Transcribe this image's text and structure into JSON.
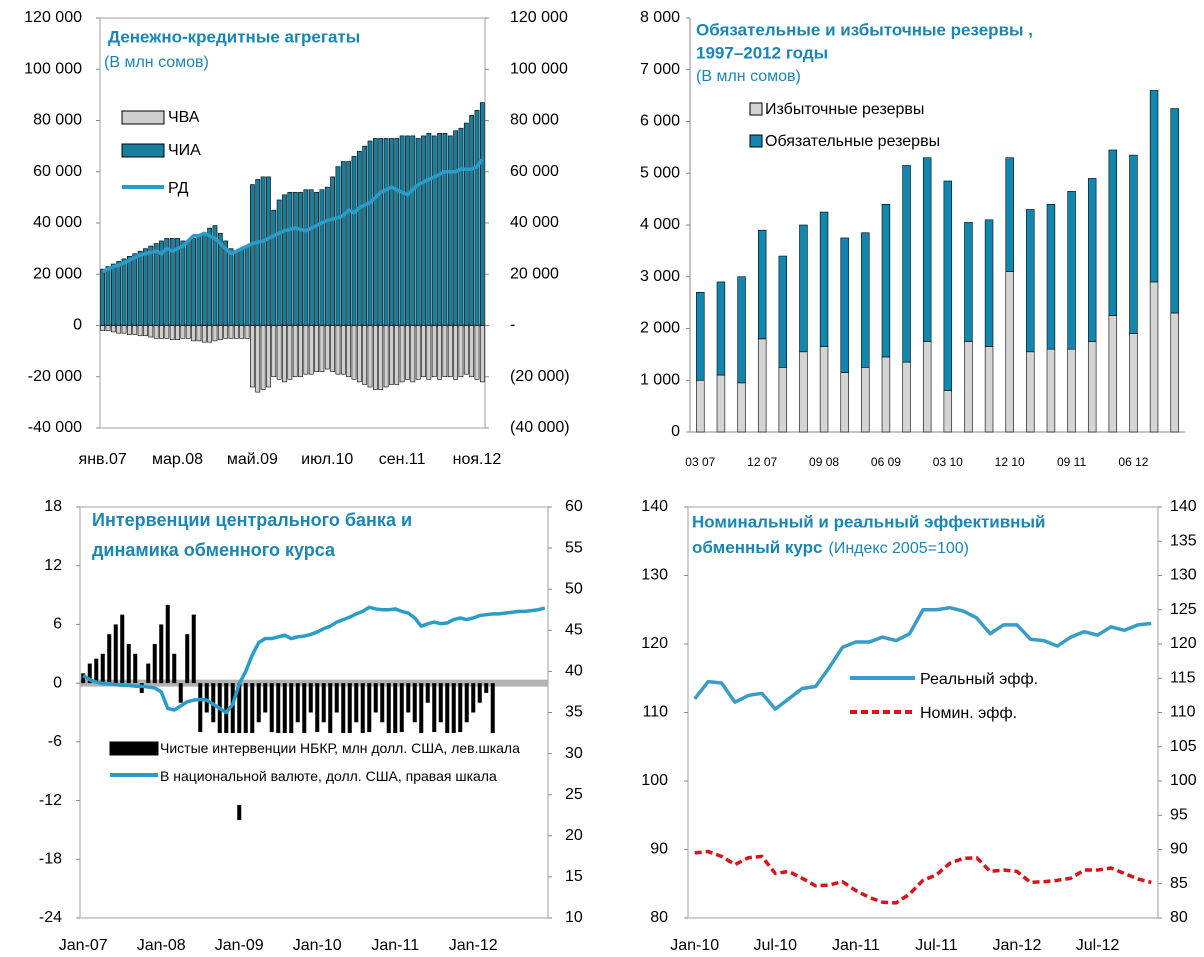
{
  "chart_data": [
    {
      "type": "combo",
      "title": "Денежно-кредитные агрегаты",
      "subtitle": "(В млн сомов)",
      "categories": [
        "янв.07",
        null,
        null,
        null,
        null,
        null,
        null,
        null,
        null,
        null,
        null,
        null,
        null,
        null,
        "мар.08",
        null,
        null,
        null,
        null,
        null,
        null,
        null,
        null,
        null,
        null,
        null,
        null,
        null,
        "май.09",
        null,
        null,
        null,
        null,
        null,
        null,
        null,
        null,
        null,
        null,
        null,
        null,
        null,
        "июл.10",
        null,
        null,
        null,
        null,
        null,
        null,
        null,
        null,
        null,
        null,
        null,
        null,
        null,
        "сен.11",
        null,
        null,
        null,
        null,
        null,
        null,
        null,
        null,
        null,
        null,
        null,
        null,
        null,
        "ноя.12",
        null
      ],
      "series": [
        {
          "name": "ЧВА",
          "type": "bar",
          "color": "#cfcfcf",
          "values": [
            -2000,
            -2000,
            -2500,
            -3000,
            -3000,
            -3500,
            -3500,
            -4000,
            -4000,
            -4500,
            -5000,
            -5000,
            -5000,
            -5500,
            -5500,
            -5000,
            -5000,
            -6000,
            -6000,
            -6500,
            -6500,
            -6000,
            -5500,
            -5000,
            -5000,
            -5000,
            -5000,
            -5000,
            -24000,
            -26000,
            -25000,
            -24000,
            -20000,
            -21000,
            -22000,
            -21000,
            -20000,
            -20000,
            -19000,
            -19000,
            -18000,
            -18000,
            -17000,
            -18000,
            -19000,
            -19000,
            -20000,
            -21000,
            -22000,
            -23000,
            -24000,
            -25000,
            -25000,
            -24000,
            -23000,
            -23000,
            -22000,
            -21000,
            -22000,
            -21000,
            -20000,
            -21000,
            -20000,
            -21000,
            -20000,
            -20000,
            -21000,
            -20000,
            -19000,
            -20000,
            -21000,
            -22000
          ]
        },
        {
          "name": "ЧИА",
          "type": "bar",
          "color": "#167f9f",
          "values": [
            22000,
            23000,
            24000,
            25000,
            26000,
            27000,
            28000,
            29000,
            30000,
            31000,
            32000,
            33000,
            34000,
            34000,
            34000,
            33000,
            33000,
            34000,
            35000,
            36000,
            38000,
            39000,
            36000,
            33000,
            30000,
            29000,
            30000,
            31000,
            55000,
            57000,
            58000,
            58000,
            45000,
            49000,
            51000,
            52000,
            52000,
            52000,
            53000,
            53000,
            52000,
            53000,
            54000,
            58000,
            62000,
            64000,
            64000,
            66000,
            68000,
            70000,
            72000,
            73000,
            73000,
            73000,
            73000,
            73000,
            74000,
            74000,
            74000,
            73000,
            74000,
            75000,
            74000,
            75000,
            75000,
            74000,
            76000,
            77000,
            79000,
            82000,
            84000,
            87000
          ]
        },
        {
          "name": "РД",
          "type": "line",
          "color": "#2a9cc8",
          "values": [
            21000,
            22000,
            23000,
            23500,
            24500,
            25500,
            26500,
            27500,
            28000,
            28500,
            29000,
            28000,
            30000,
            29000,
            30000,
            31000,
            33000,
            35000,
            35000,
            36000,
            35000,
            34000,
            32000,
            30000,
            28000,
            29000,
            30000,
            31000,
            32000,
            32500,
            33000,
            34000,
            35000,
            36000,
            37000,
            37500,
            38000,
            37500,
            37000,
            38000,
            39000,
            40000,
            41000,
            41500,
            42000,
            43000,
            45000,
            44000,
            46000,
            47000,
            48000,
            50000,
            52000,
            53000,
            54000,
            53000,
            52000,
            51000,
            53000,
            55000,
            56000,
            57000,
            58000,
            59000,
            60000,
            60000,
            60000,
            61000,
            61000,
            61000,
            62000,
            65000
          ]
        }
      ],
      "ylim": [
        -40000,
        120000
      ],
      "yticks": [
        {
          "value": 120000,
          "label": "120 000"
        },
        {
          "value": 100000,
          "label": "100 000"
        },
        {
          "value": 80000,
          "label": "80 000"
        },
        {
          "value": 60000,
          "label": "60 000"
        },
        {
          "value": 40000,
          "label": "40 000"
        },
        {
          "value": 20000,
          "label": "20 000"
        },
        0,
        {
          "value": -20000,
          "label": "-20 000"
        },
        {
          "value": -40000,
          "label": "-40 000"
        }
      ],
      "y2lim": [
        -40000,
        120000
      ],
      "y2ticks": [
        {
          "value": 120000,
          "label": "120 000"
        },
        {
          "value": 100000,
          "label": "100 000"
        },
        {
          "value": 80000,
          "label": "80 000"
        },
        {
          "value": 60000,
          "label": "60 000"
        },
        {
          "value": 40000,
          "label": "40 000"
        },
        {
          "value": 20000,
          "label": "20 000"
        },
        {
          "value": 0,
          "label": "-"
        },
        {
          "value": -20000,
          "label": "(20 000)"
        },
        {
          "value": -40000,
          "label": "(40 000)"
        }
      ],
      "grid": false
    },
    {
      "type": "bar",
      "title": [
        "Обязательные и избыточные резервы ,",
        "1997–2012 годы"
      ],
      "subtitle": "(В млн сомов)",
      "categories": [
        "03 07",
        null,
        null,
        "12 07",
        null,
        null,
        "09 08",
        null,
        null,
        "06 09",
        null,
        null,
        "03 10",
        null,
        null,
        "12 10",
        null,
        null,
        "09 11",
        null,
        null,
        "06 12",
        null,
        null
      ],
      "series": [
        {
          "name": "Избыточные резервы",
          "type": "bar",
          "color": "#d4d4d4",
          "values": [
            1000,
            1100,
            950,
            1800,
            1250,
            1550,
            1650,
            1150,
            1250,
            1450,
            1350,
            1750,
            800,
            1750,
            1650,
            3100,
            1550,
            1600,
            1600,
            1750,
            2250,
            1900,
            2900,
            2300
          ]
        },
        {
          "name": "Обязательные резервы",
          "type": "bar",
          "color": "#1187b0",
          "values": [
            1700,
            1800,
            2050,
            2100,
            2150,
            2450,
            2600,
            2600,
            2600,
            2950,
            3800,
            3550,
            4050,
            2300,
            2450,
            2200,
            2750,
            2800,
            3050,
            3150,
            3200,
            3450,
            3700,
            3950
          ]
        }
      ],
      "ylim": [
        0,
        8000
      ],
      "yticks": [
        {
          "value": 8000,
          "label": "8 000"
        },
        {
          "value": 7000,
          "label": "7 000"
        },
        {
          "value": 6000,
          "label": "6 000"
        },
        {
          "value": 5000,
          "label": "5 000"
        },
        {
          "value": 4000,
          "label": "4 000"
        },
        {
          "value": 3000,
          "label": "3 000"
        },
        {
          "value": 2000,
          "label": "2 000"
        },
        {
          "value": 1000,
          "label": "1 000"
        },
        0
      ],
      "grid": false
    },
    {
      "type": "combo",
      "title": [
        "Интервенции центрального банка и",
        "динамика обменного курса"
      ],
      "categories": [
        "Jan-07",
        null,
        null,
        null,
        null,
        null,
        null,
        null,
        null,
        null,
        null,
        null,
        "Jan-08",
        null,
        null,
        null,
        null,
        null,
        null,
        null,
        null,
        null,
        null,
        null,
        "Jan-09",
        null,
        null,
        null,
        null,
        null,
        null,
        null,
        null,
        null,
        null,
        null,
        "Jan-10",
        null,
        null,
        null,
        null,
        null,
        null,
        null,
        null,
        null,
        null,
        null,
        "Jan-11",
        null,
        null,
        null,
        null,
        null,
        null,
        null,
        null,
        null,
        null,
        null,
        "Jan-12",
        null,
        null,
        null,
        null,
        null,
        null,
        null,
        null,
        null,
        null,
        null
      ],
      "series": [
        {
          "name": "Чистые интервенции НБКР, млн долл. США, лев.шкала",
          "type": "bar",
          "color": "#000000",
          "values": [
            1,
            2,
            2.5,
            3,
            5,
            6,
            7,
            4,
            3,
            -1,
            2,
            4,
            6,
            8,
            3,
            -2,
            5,
            7,
            -5,
            -3,
            -4,
            -6,
            -8,
            -12,
            -14,
            -10,
            -6,
            -4,
            -3,
            -5,
            -6,
            -9,
            -8,
            -4,
            -6,
            -3,
            -5,
            -4,
            -6,
            -3,
            -7,
            -8,
            -4,
            -6,
            -5,
            -3,
            -4,
            -7,
            -6,
            -5,
            -3,
            -4,
            -6,
            -2,
            -5,
            -4,
            -7,
            -12,
            -5,
            -4,
            -3,
            -2,
            -1,
            -8,
            0,
            0,
            0,
            0,
            0,
            0,
            0,
            0
          ]
        },
        {
          "name": "В национальной валюте, долл. США, правая шкала",
          "type": "line",
          "axis": "y2",
          "color": "#2a9cc8",
          "values": [
            39.5,
            39,
            38.7,
            38.5,
            38.5,
            38.4,
            38.3,
            38.3,
            38.2,
            38.2,
            38.1,
            38,
            37.5,
            35.5,
            35.3,
            35.8,
            36.3,
            36.5,
            36.6,
            36.5,
            36,
            35.5,
            35,
            36,
            38.5,
            40,
            42,
            43.5,
            44,
            44,
            44.2,
            44.4,
            44,
            44.2,
            44.3,
            44.5,
            44.8,
            45.2,
            45.5,
            46,
            46.3,
            46.6,
            47,
            47.3,
            47.8,
            47.6,
            47.5,
            47.5,
            47.6,
            47.3,
            47.1,
            46.5,
            45.5,
            45.8,
            46,
            45.8,
            45.9,
            46.3,
            46.5,
            46.3,
            46.5,
            46.8,
            46.9,
            47,
            47,
            47.1,
            47.2,
            47.3,
            47.3,
            47.4,
            47.5,
            47.7
          ]
        }
      ],
      "ylim": [
        -24,
        18
      ],
      "yticks": [
        18,
        12,
        6,
        0,
        -6,
        -12,
        -18,
        -24
      ],
      "y2lim": [
        10,
        60
      ],
      "y2ticks": [
        60,
        55,
        50,
        45,
        40,
        35,
        30,
        25,
        20,
        15,
        10
      ],
      "grid": false
    },
    {
      "type": "line",
      "title": [
        "Номинальный и реальный эффективный",
        "обменный курс"
      ],
      "subtitle": "(Индекс 2005=100)",
      "categories": [
        "Jan-10",
        null,
        null,
        null,
        null,
        null,
        "Jul-10",
        null,
        null,
        null,
        null,
        null,
        "Jan-11",
        null,
        null,
        null,
        null,
        null,
        "Jul-11",
        null,
        null,
        null,
        null,
        null,
        "Jan-12",
        null,
        null,
        null,
        null,
        null,
        "Jul-12",
        null,
        null,
        null,
        null
      ],
      "series": [
        {
          "name": "Реальный эфф.",
          "type": "line",
          "color": "#3a9cc6",
          "linestyle": "solid",
          "values": [
            112,
            114.5,
            114.3,
            111.5,
            112.5,
            112.8,
            110.5,
            112,
            113.5,
            113.8,
            116.5,
            119.5,
            120.3,
            120.3,
            121,
            120.5,
            121.5,
            125,
            125,
            125.3,
            124.8,
            123.8,
            121.5,
            122.8,
            122.8,
            120.7,
            120.5,
            119.7,
            121,
            121.8,
            121.3,
            122.5,
            122,
            122.8,
            123
          ]
        },
        {
          "name": "Номин. эфф.",
          "type": "line",
          "color": "#d7141a",
          "linestyle": "dashed",
          "values": [
            89.5,
            89.7,
            89,
            87.8,
            88.8,
            89,
            86.5,
            86.8,
            85.8,
            84.7,
            84.8,
            85.3,
            84,
            83,
            82.3,
            82.2,
            83.5,
            85.5,
            86.3,
            88,
            88.7,
            88.8,
            86.8,
            87,
            86.8,
            85.2,
            85.3,
            85.5,
            85.8,
            87,
            87,
            87.3,
            86.5,
            85.7,
            85.2
          ]
        }
      ],
      "ylim": [
        80,
        140
      ],
      "yticks": [
        140,
        130,
        120,
        110,
        100,
        90,
        80
      ],
      "y2lim": [
        80,
        140
      ],
      "y2ticks": [
        140,
        135,
        130,
        125,
        120,
        115,
        110,
        105,
        100,
        95,
        90,
        85,
        80
      ],
      "grid": false
    }
  ]
}
